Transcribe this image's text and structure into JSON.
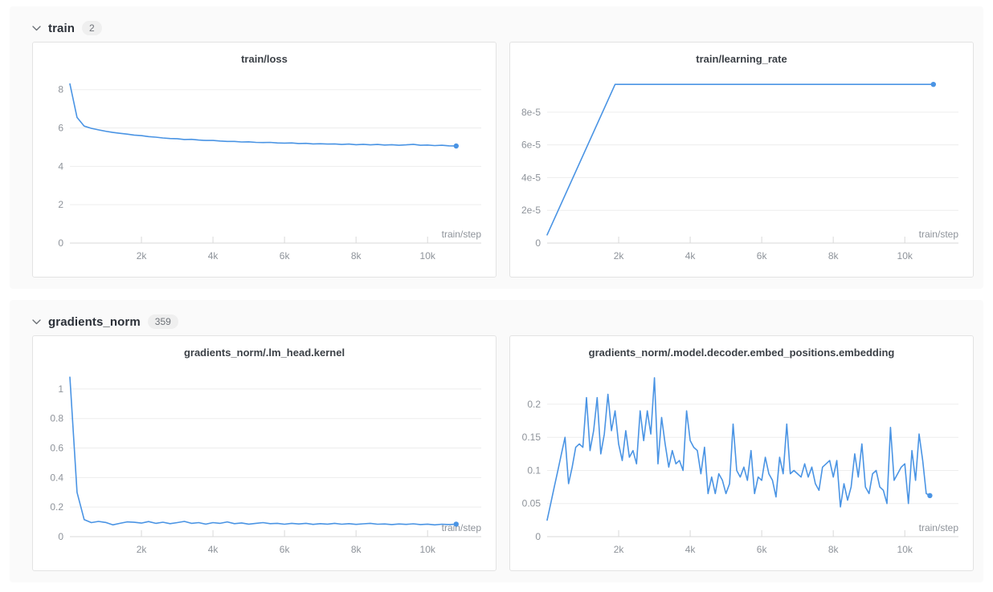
{
  "colors": {
    "accent": "#4a94e4",
    "grid": "#ededed",
    "axis": "#d9d9d9",
    "tick_text": "#8e939a",
    "panel_bg": "#fafafa",
    "card_border": "#e3e3e3",
    "section_title": "#2b3038"
  },
  "sections": [
    {
      "label": "train",
      "count": "2"
    },
    {
      "label": "gradients_norm",
      "count": "359"
    }
  ],
  "chart_data": [
    {
      "type": "line",
      "title": "train/loss",
      "xlabel": "train/step",
      "xlim": [
        0,
        11500
      ],
      "ylim": [
        0,
        8.7
      ],
      "xticks": [
        [
          2000,
          "2k"
        ],
        [
          4000,
          "4k"
        ],
        [
          6000,
          "6k"
        ],
        [
          8000,
          "8k"
        ],
        [
          10000,
          "10k"
        ]
      ],
      "yticks": [
        [
          0,
          "0"
        ],
        [
          2,
          "2"
        ],
        [
          4,
          "4"
        ],
        [
          6,
          "6"
        ],
        [
          8,
          "8"
        ]
      ],
      "x_start": 0,
      "x_step": 200,
      "end_dot": true,
      "values": [
        8.3,
        6.55,
        6.1,
        5.98,
        5.9,
        5.83,
        5.77,
        5.72,
        5.68,
        5.63,
        5.6,
        5.55,
        5.52,
        5.48,
        5.45,
        5.44,
        5.4,
        5.41,
        5.37,
        5.35,
        5.35,
        5.32,
        5.3,
        5.3,
        5.27,
        5.28,
        5.25,
        5.24,
        5.25,
        5.22,
        5.21,
        5.22,
        5.19,
        5.2,
        5.17,
        5.18,
        5.16,
        5.17,
        5.14,
        5.16,
        5.13,
        5.15,
        5.12,
        5.14,
        5.11,
        5.13,
        5.1,
        5.12,
        5.15,
        5.1,
        5.11,
        5.08,
        5.1,
        5.07,
        5.06
      ]
    },
    {
      "type": "line",
      "title": "train/learning_rate",
      "xlabel": "train/step",
      "xlim": [
        0,
        11500
      ],
      "ylim": [
        0,
        0.000102
      ],
      "xticks": [
        [
          2000,
          "2k"
        ],
        [
          4000,
          "4k"
        ],
        [
          6000,
          "6k"
        ],
        [
          8000,
          "8k"
        ],
        [
          10000,
          "10k"
        ]
      ],
      "yticks": [
        [
          0,
          "0"
        ],
        [
          2e-05,
          "2e-5"
        ],
        [
          4e-05,
          "4e-5"
        ],
        [
          6e-05,
          "6e-5"
        ],
        [
          8e-05,
          "8e-5"
        ]
      ],
      "x": [
        0,
        1900,
        10800
      ],
      "end_dot": true,
      "values": [
        5e-06,
        9.7e-05,
        9.7e-05
      ]
    },
    {
      "type": "line",
      "title": "gradients_norm/.lm_head.kernel",
      "xlabel": "train/step",
      "xlim": [
        0,
        11500
      ],
      "ylim": [
        0,
        1.13
      ],
      "xticks": [
        [
          2000,
          "2k"
        ],
        [
          4000,
          "4k"
        ],
        [
          6000,
          "6k"
        ],
        [
          8000,
          "8k"
        ],
        [
          10000,
          "10k"
        ]
      ],
      "yticks": [
        [
          0,
          "0"
        ],
        [
          0.2,
          "0.2"
        ],
        [
          0.4,
          "0.4"
        ],
        [
          0.6,
          "0.6"
        ],
        [
          0.8,
          "0.8"
        ],
        [
          1,
          "1"
        ]
      ],
      "x_start": 0,
      "x_step": 200,
      "end_dot": true,
      "values": [
        1.08,
        0.3,
        0.115,
        0.095,
        0.103,
        0.096,
        0.08,
        0.09,
        0.1,
        0.097,
        0.092,
        0.102,
        0.09,
        0.098,
        0.088,
        0.095,
        0.103,
        0.09,
        0.095,
        0.085,
        0.095,
        0.09,
        0.1,
        0.088,
        0.093,
        0.085,
        0.09,
        0.095,
        0.088,
        0.09,
        0.084,
        0.09,
        0.086,
        0.09,
        0.083,
        0.088,
        0.085,
        0.09,
        0.084,
        0.088,
        0.083,
        0.087,
        0.09,
        0.084,
        0.086,
        0.082,
        0.086,
        0.083,
        0.087,
        0.082,
        0.085,
        0.08,
        0.084,
        0.082,
        0.085
      ]
    },
    {
      "type": "line",
      "title": "gradients_norm/.model.decoder.embed_positions.embedding",
      "xlabel": "train/step",
      "xlim": [
        0,
        11500
      ],
      "ylim": [
        0,
        0.252
      ],
      "xticks": [
        [
          2000,
          "2k"
        ],
        [
          4000,
          "4k"
        ],
        [
          6000,
          "6k"
        ],
        [
          8000,
          "8k"
        ],
        [
          10000,
          "10k"
        ]
      ],
      "yticks": [
        [
          0,
          "0"
        ],
        [
          0.05,
          "0.05"
        ],
        [
          0.1,
          "0.1"
        ],
        [
          0.15,
          "0.15"
        ],
        [
          0.2,
          "0.2"
        ]
      ],
      "x_start": 0,
      "x_step": 100,
      "end_dot": true,
      "values": [
        0.025,
        0.05,
        0.075,
        0.1,
        0.125,
        0.15,
        0.08,
        0.105,
        0.135,
        0.14,
        0.135,
        0.21,
        0.13,
        0.16,
        0.21,
        0.125,
        0.155,
        0.215,
        0.16,
        0.19,
        0.14,
        0.115,
        0.16,
        0.12,
        0.13,
        0.11,
        0.19,
        0.145,
        0.19,
        0.155,
        0.24,
        0.11,
        0.18,
        0.14,
        0.105,
        0.13,
        0.11,
        0.115,
        0.1,
        0.19,
        0.145,
        0.135,
        0.13,
        0.095,
        0.135,
        0.065,
        0.09,
        0.065,
        0.095,
        0.085,
        0.065,
        0.08,
        0.17,
        0.1,
        0.09,
        0.105,
        0.085,
        0.13,
        0.065,
        0.09,
        0.085,
        0.12,
        0.095,
        0.085,
        0.06,
        0.12,
        0.095,
        0.17,
        0.095,
        0.1,
        0.095,
        0.09,
        0.11,
        0.09,
        0.105,
        0.08,
        0.07,
        0.105,
        0.11,
        0.115,
        0.09,
        0.115,
        0.045,
        0.08,
        0.055,
        0.075,
        0.125,
        0.09,
        0.14,
        0.075,
        0.065,
        0.095,
        0.1,
        0.075,
        0.07,
        0.05,
        0.165,
        0.085,
        0.095,
        0.105,
        0.11,
        0.05,
        0.13,
        0.085,
        0.155,
        0.115,
        0.065,
        0.062
      ]
    }
  ]
}
